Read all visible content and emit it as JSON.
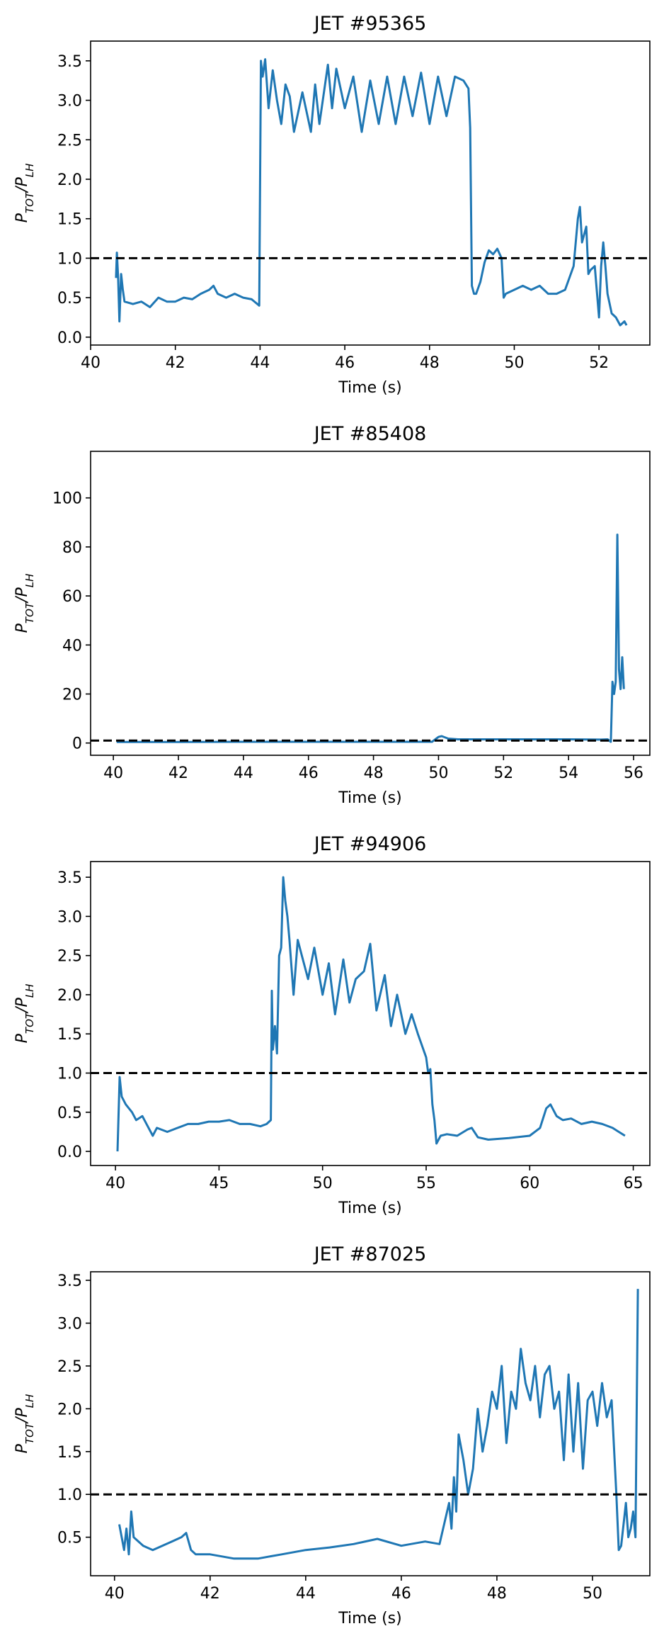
{
  "chart_data": [
    {
      "type": "line",
      "title": "JET #95365",
      "xlabel": "Time (s)",
      "ylabel": "P_TOT/P_LH",
      "xlim": [
        40,
        53.2
      ],
      "ylim": [
        -0.1,
        3.75
      ],
      "xticks": [
        40,
        42,
        44,
        46,
        48,
        50,
        52
      ],
      "xtick_labels": [
        "40",
        "42",
        "44",
        "46",
        "48",
        "50",
        "52"
      ],
      "yticks": [
        0,
        0.5,
        1,
        1.5,
        2,
        2.5,
        3,
        3.5
      ],
      "ytick_labels": [
        "0.0",
        "0.5",
        "1.0",
        "1.5",
        "2.0",
        "2.5",
        "3.0",
        "3.5"
      ],
      "threshold": 1.0,
      "series": [
        {
          "x": [
            40.6,
            40.62,
            40.65,
            40.68,
            40.72,
            40.76,
            40.8,
            41.0,
            41.2,
            41.4,
            41.6,
            41.8,
            42.0,
            42.2,
            42.4,
            42.6,
            42.8,
            42.9,
            43.0,
            43.2,
            43.4,
            43.6,
            43.8,
            43.98,
            44.02,
            44.06,
            44.12,
            44.2,
            44.3,
            44.4,
            44.5,
            44.6,
            44.7,
            44.8,
            45.0,
            45.2,
            45.3,
            45.4,
            45.6,
            45.7,
            45.8,
            46.0,
            46.2,
            46.4,
            46.6,
            46.8,
            47.0,
            47.2,
            47.4,
            47.6,
            47.8,
            48.0,
            48.2,
            48.4,
            48.6,
            48.8,
            48.92,
            48.96,
            49.0,
            49.05,
            49.1,
            49.2,
            49.3,
            49.4,
            49.5,
            49.6,
            49.7,
            49.75,
            49.8,
            50.0,
            50.2,
            50.4,
            50.6,
            50.8,
            51.0,
            51.2,
            51.4,
            51.5,
            51.55,
            51.6,
            51.7,
            51.75,
            51.8,
            51.9,
            52.0,
            52.05,
            52.1,
            52.15,
            52.2,
            52.3,
            52.4,
            52.5,
            52.6,
            52.65
          ],
          "y": [
            0.75,
            1.07,
            0.75,
            0.2,
            0.8,
            0.6,
            0.45,
            0.42,
            0.45,
            0.38,
            0.5,
            0.45,
            0.45,
            0.5,
            0.48,
            0.55,
            0.6,
            0.65,
            0.55,
            0.5,
            0.55,
            0.5,
            0.48,
            0.4,
            3.5,
            3.3,
            3.52,
            2.9,
            3.38,
            3.0,
            2.7,
            3.2,
            3.05,
            2.6,
            3.1,
            2.6,
            3.2,
            2.7,
            3.45,
            2.9,
            3.4,
            2.9,
            3.3,
            2.6,
            3.25,
            2.7,
            3.3,
            2.7,
            3.3,
            2.8,
            3.35,
            2.7,
            3.3,
            2.8,
            3.3,
            3.25,
            3.15,
            2.65,
            0.65,
            0.55,
            0.55,
            0.7,
            0.95,
            1.1,
            1.05,
            1.12,
            1.0,
            0.5,
            0.55,
            0.6,
            0.65,
            0.6,
            0.65,
            0.55,
            0.55,
            0.6,
            0.9,
            1.5,
            1.65,
            1.2,
            1.4,
            0.8,
            0.85,
            0.9,
            0.25,
            0.9,
            1.2,
            0.9,
            0.55,
            0.3,
            0.25,
            0.15,
            0.2,
            0.15
          ]
        }
      ]
    },
    {
      "type": "line",
      "title": "JET #85408",
      "xlabel": "Time (s)",
      "ylabel": "P_TOT/P_LH",
      "xlim": [
        39.3,
        56.5
      ],
      "ylim": [
        -5,
        119
      ],
      "xticks": [
        40,
        42,
        44,
        46,
        48,
        50,
        52,
        54,
        56
      ],
      "xtick_labels": [
        "40",
        "42",
        "44",
        "46",
        "48",
        "50",
        "52",
        "54",
        "56"
      ],
      "yticks": [
        0,
        20,
        40,
        60,
        80,
        100
      ],
      "ytick_labels": [
        "0",
        "20",
        "40",
        "60",
        "80",
        "100"
      ],
      "threshold": 1.0,
      "series": [
        {
          "x": [
            40.1,
            42.0,
            44.0,
            46.0,
            48.0,
            49.8,
            50.0,
            50.1,
            50.3,
            50.6,
            52.0,
            54.0,
            55.0,
            55.2,
            55.3,
            55.35,
            55.4,
            55.45,
            55.5,
            55.55,
            55.6,
            55.65,
            55.7
          ],
          "y": [
            0.4,
            0.4,
            0.5,
            0.5,
            0.5,
            0.5,
            2.5,
            2.8,
            1.8,
            1.5,
            1.5,
            1.5,
            1.4,
            1.5,
            0.5,
            25,
            20,
            25,
            85,
            30,
            22,
            35,
            22
          ]
        }
      ]
    },
    {
      "type": "line",
      "title": "JET #94906",
      "xlabel": "Time (s)",
      "ylabel": "P_TOT/P_LH",
      "xlim": [
        38.8,
        65.8
      ],
      "ylim": [
        -0.18,
        3.7
      ],
      "xticks": [
        40,
        45,
        50,
        55,
        60,
        65
      ],
      "xtick_labels": [
        "40",
        "45",
        "50",
        "55",
        "60",
        "65"
      ],
      "yticks": [
        0,
        0.5,
        1,
        1.5,
        2,
        2.5,
        3,
        3.5
      ],
      "ytick_labels": [
        "0.0",
        "0.5",
        "1.0",
        "1.5",
        "2.0",
        "2.5",
        "3.0",
        "3.5"
      ],
      "threshold": 1.0,
      "series": [
        {
          "x": [
            40.1,
            40.2,
            40.3,
            40.5,
            40.8,
            41.0,
            41.3,
            41.6,
            41.8,
            42.0,
            42.5,
            43.0,
            43.5,
            44.0,
            44.5,
            45.0,
            45.5,
            46.0,
            46.5,
            47.0,
            47.3,
            47.5,
            47.55,
            47.6,
            47.7,
            47.8,
            47.9,
            48.0,
            48.1,
            48.2,
            48.3,
            48.4,
            48.6,
            48.8,
            49.0,
            49.3,
            49.6,
            50.0,
            50.3,
            50.6,
            51.0,
            51.3,
            51.6,
            52.0,
            52.3,
            52.6,
            53.0,
            53.3,
            53.6,
            54.0,
            54.3,
            54.6,
            55.0,
            55.1,
            55.2,
            55.3,
            55.4,
            55.5,
            55.7,
            56.0,
            56.5,
            57.0,
            57.2,
            57.5,
            58.0,
            59.0,
            60.0,
            60.5,
            60.8,
            61.0,
            61.3,
            61.6,
            62.0,
            62.5,
            63.0,
            63.5,
            64.0,
            64.3,
            64.6
          ],
          "y": [
            0.0,
            0.95,
            0.7,
            0.6,
            0.5,
            0.4,
            0.45,
            0.3,
            0.2,
            0.3,
            0.25,
            0.3,
            0.35,
            0.35,
            0.38,
            0.38,
            0.4,
            0.35,
            0.35,
            0.32,
            0.35,
            0.4,
            2.05,
            1.3,
            1.6,
            1.25,
            2.5,
            2.6,
            3.5,
            3.2,
            3.0,
            2.7,
            2.0,
            2.7,
            2.5,
            2.2,
            2.6,
            2.0,
            2.4,
            1.75,
            2.45,
            1.9,
            2.2,
            2.3,
            2.65,
            1.8,
            2.25,
            1.6,
            2.0,
            1.5,
            1.75,
            1.5,
            1.2,
            1.0,
            1.05,
            0.6,
            0.4,
            0.1,
            0.2,
            0.22,
            0.2,
            0.28,
            0.3,
            0.18,
            0.15,
            0.17,
            0.2,
            0.3,
            0.55,
            0.6,
            0.45,
            0.4,
            0.42,
            0.35,
            0.38,
            0.35,
            0.3,
            0.25,
            0.2
          ]
        }
      ]
    },
    {
      "type": "line",
      "title": "JET #87025",
      "xlabel": "Time (s)",
      "ylabel": "P_TOT/P_LH",
      "xlim": [
        39.5,
        51.2
      ],
      "ylim": [
        0.05,
        3.6
      ],
      "xticks": [
        40,
        42,
        44,
        46,
        48,
        50
      ],
      "xtick_labels": [
        "40",
        "42",
        "44",
        "46",
        "48",
        "50"
      ],
      "yticks": [
        0.5,
        1,
        1.5,
        2,
        2.5,
        3,
        3.5
      ],
      "ytick_labels": [
        "0.5",
        "1.0",
        "1.5",
        "2.0",
        "2.5",
        "3.0",
        "3.5"
      ],
      "threshold": 1.0,
      "series": [
        {
          "x": [
            40.1,
            40.2,
            40.25,
            40.3,
            40.35,
            40.4,
            40.6,
            40.8,
            41.0,
            41.2,
            41.4,
            41.5,
            41.6,
            41.7,
            42.0,
            42.5,
            43.0,
            43.5,
            44.0,
            44.5,
            45.0,
            45.5,
            46.0,
            46.5,
            46.8,
            47.0,
            47.05,
            47.1,
            47.15,
            47.2,
            47.3,
            47.4,
            47.5,
            47.6,
            47.7,
            47.8,
            47.9,
            48.0,
            48.1,
            48.2,
            48.3,
            48.4,
            48.5,
            48.6,
            48.7,
            48.8,
            48.9,
            49.0,
            49.1,
            49.2,
            49.3,
            49.4,
            49.5,
            49.6,
            49.7,
            49.8,
            49.9,
            50.0,
            50.1,
            50.2,
            50.3,
            50.4,
            50.5,
            50.55,
            50.6,
            50.7,
            50.75,
            50.8,
            50.85,
            50.9,
            50.95
          ],
          "y": [
            0.65,
            0.35,
            0.6,
            0.3,
            0.8,
            0.5,
            0.4,
            0.35,
            0.4,
            0.45,
            0.5,
            0.55,
            0.35,
            0.3,
            0.3,
            0.25,
            0.25,
            0.3,
            0.35,
            0.38,
            0.42,
            0.48,
            0.4,
            0.45,
            0.42,
            0.9,
            0.6,
            1.2,
            0.8,
            1.7,
            1.4,
            1.0,
            1.3,
            2.0,
            1.5,
            1.8,
            2.2,
            2.0,
            2.5,
            1.6,
            2.2,
            2.0,
            2.7,
            2.3,
            2.1,
            2.5,
            1.9,
            2.4,
            2.5,
            2.0,
            2.2,
            1.4,
            2.4,
            1.5,
            2.3,
            1.3,
            2.1,
            2.2,
            1.8,
            2.3,
            1.9,
            2.1,
            1.0,
            0.35,
            0.4,
            0.9,
            0.5,
            0.6,
            0.8,
            0.5,
            3.4
          ]
        }
      ]
    }
  ]
}
